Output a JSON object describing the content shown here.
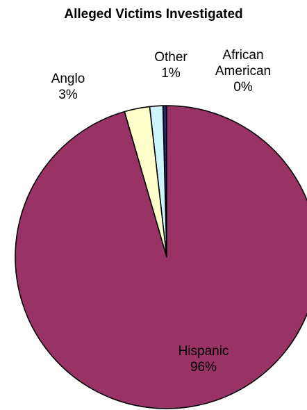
{
  "chart_data": {
    "type": "pie",
    "title": "Alleged Victims Investigated",
    "categories": [
      "African American",
      "Other",
      "Anglo",
      "Hispanic"
    ],
    "values": [
      0.4,
      1.4,
      2.7,
      95.5
    ],
    "value_labels": [
      "0%",
      "1%",
      "3%",
      "96%"
    ],
    "colors": [
      "#1f2a6e",
      "#ccf5ff",
      "#ffffcc",
      "#993366"
    ],
    "label_lines": [
      [
        "African",
        "American",
        "0%"
      ],
      [
        "Other",
        "1%"
      ],
      [
        "Anglo",
        "3%"
      ],
      [
        "Hispanic",
        "96%"
      ]
    ]
  }
}
